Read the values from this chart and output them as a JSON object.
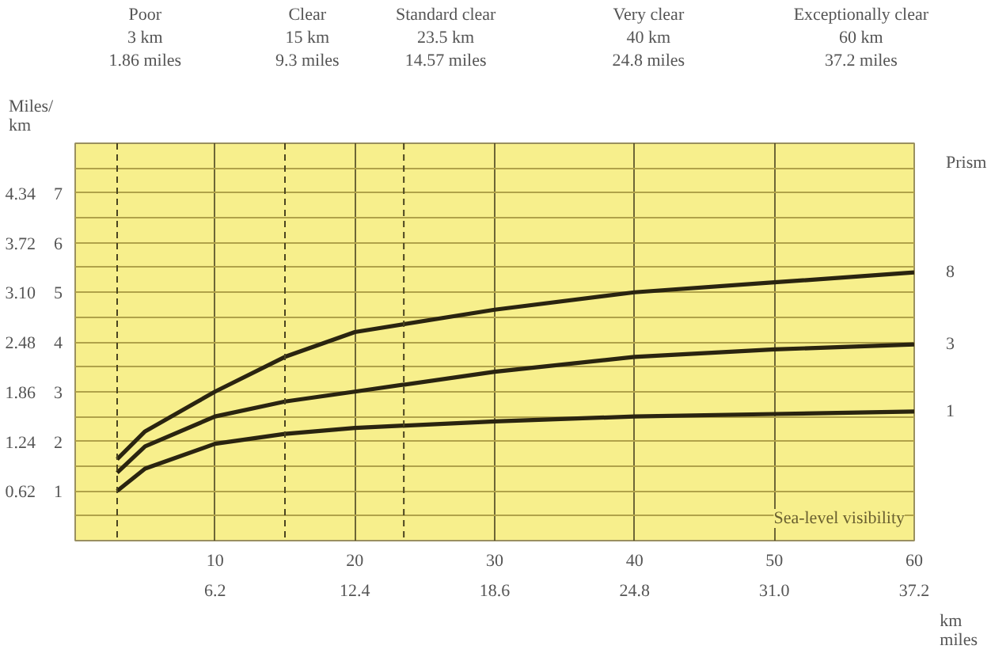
{
  "chart_data": {
    "type": "line",
    "xlabel": "km\nmiles",
    "legend_title": "Prism",
    "annotations": [
      "Poor\n3 km\n1.86 miles",
      "Clear\n15 km\n9.3 miles",
      "Standard clear\n23.5 km\n14.57 miles",
      "Very clear\n40 km\n24.8 miles",
      "Exceptionally clear\n60 km\n37.2 miles",
      "Sea-level visibility",
      "Miles/\nkm"
    ],
    "x": [
      3,
      5,
      10,
      15,
      20,
      30,
      40,
      50,
      60
    ],
    "series": [
      {
        "name": "8",
        "color": "#2a2410",
        "values": [
          1.64,
          2.2,
          3.0,
          3.7,
          4.2,
          4.65,
          5.0,
          5.2,
          5.4
        ]
      },
      {
        "name": "3",
        "color": "#2a2410",
        "values": [
          1.37,
          1.9,
          2.5,
          2.8,
          3.0,
          3.4,
          3.7,
          3.85,
          3.95
        ]
      },
      {
        "name": "1",
        "color": "#2a2410",
        "values": [
          1.0,
          1.45,
          1.95,
          2.15,
          2.27,
          2.4,
          2.5,
          2.55,
          2.6
        ]
      }
    ],
    "xlim": [
      0,
      60
    ],
    "ylim": [
      0,
      8
    ],
    "xticks": [
      10,
      20,
      30,
      40,
      50,
      60
    ],
    "x2lim": [
      0,
      37.2
    ],
    "x2ticks": [
      6.2,
      12.4,
      18.6,
      24.8,
      {
        "value": 31.0,
        "label": "31.0"
      },
      37.2
    ],
    "yticks": [
      {
        "value": 0.5,
        "label": null
      },
      1,
      {
        "value": 1.5,
        "label": null
      },
      2,
      {
        "value": 2.5,
        "label": null
      },
      3,
      {
        "value": 3.5,
        "label": null
      },
      4,
      {
        "value": 4.5,
        "label": null
      },
      5,
      {
        "value": 5.5,
        "label": null
      },
      6,
      {
        "value": 6.5,
        "label": null
      },
      7,
      {
        "value": 7.5,
        "label": null
      }
    ],
    "y2lim": [
      0,
      4.96
    ],
    "y2ticks": [
      0.62,
      1.24,
      1.86,
      2.48,
      {
        "value": 3.1,
        "label": "3.10"
      },
      3.72,
      4.34
    ],
    "ref_lines": [
      {
        "axis": "x",
        "value": 3,
        "line_style": "dashed"
      },
      {
        "axis": "x",
        "value": 15,
        "line_style": "dashed"
      },
      {
        "axis": "x",
        "value": 23.5,
        "line_style": "dashed"
      }
    ],
    "grid": true,
    "marker": "none",
    "line_style": "solid"
  }
}
